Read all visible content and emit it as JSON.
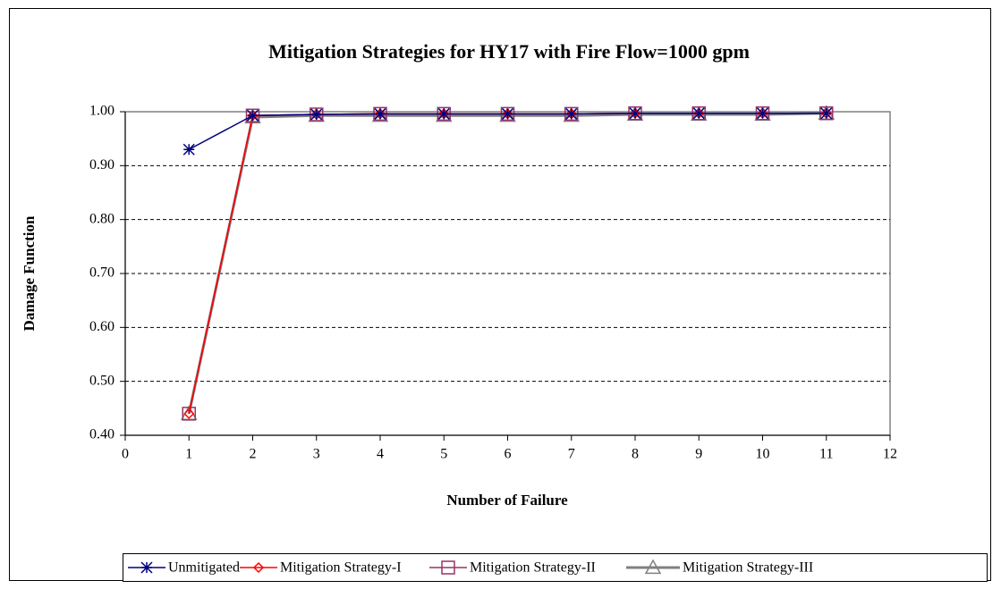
{
  "chart_data": {
    "type": "line",
    "title": "Mitigation Strategies for HY17 with Fire Flow=1000 gpm",
    "xlabel": "Number of Failure",
    "ylabel": "Damage Function",
    "x": [
      1,
      2,
      3,
      4,
      5,
      6,
      7,
      8,
      9,
      10,
      11
    ],
    "series": [
      {
        "name": "Unmitigated",
        "color": "#000080",
        "marker": "star",
        "values": [
          0.93,
          0.993,
          0.995,
          0.996,
          0.996,
          0.996,
          0.996,
          0.997,
          0.997,
          0.997,
          0.997
        ]
      },
      {
        "name": "Mitigation Strategy-I",
        "color": "#ff0000",
        "marker": "diamond",
        "values": [
          0.44,
          0.993,
          0.995,
          0.996,
          0.996,
          0.996,
          0.996,
          0.997,
          0.997,
          0.997,
          0.997
        ]
      },
      {
        "name": "Mitigation Strategy-II",
        "color": "#993366",
        "marker": "square",
        "values": [
          0.44,
          0.993,
          0.995,
          0.996,
          0.996,
          0.996,
          0.996,
          0.997,
          0.997,
          0.997,
          0.997
        ]
      },
      {
        "name": "Mitigation Strategy-III",
        "color": "#808080",
        "marker": "triangle",
        "values": [
          0.44,
          0.99,
          0.993,
          0.993,
          0.993,
          0.993,
          0.993,
          0.995,
          0.995,
          0.995,
          0.997
        ]
      }
    ],
    "xlim": [
      0,
      12
    ],
    "xticks": [
      0,
      1,
      2,
      3,
      4,
      5,
      6,
      7,
      8,
      9,
      10,
      11,
      12
    ],
    "ylim": [
      0.4,
      1.0
    ],
    "yticks": [
      {
        "value": 0.4,
        "label": "0.40"
      },
      {
        "value": 0.5,
        "label": "0.50"
      },
      {
        "value": 0.6,
        "label": "0.60"
      },
      {
        "value": 0.7,
        "label": "0.70"
      },
      {
        "value": 0.8,
        "label": "0.80"
      },
      {
        "value": 0.9,
        "label": "0.90"
      },
      {
        "value": 1.0,
        "label": "1.00"
      }
    ],
    "grid": true,
    "legend": "bottom"
  }
}
